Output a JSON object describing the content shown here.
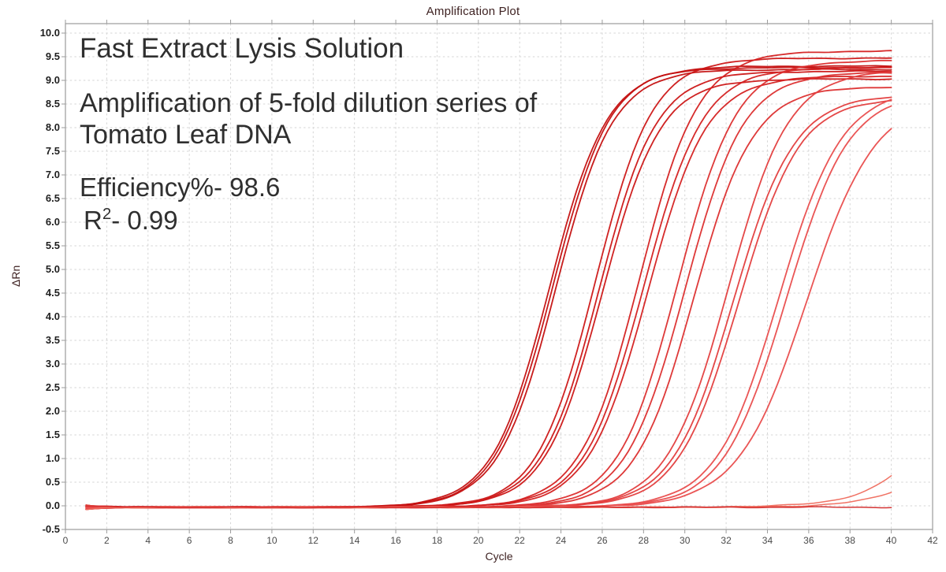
{
  "annotations": {
    "heading": "Fast Extract Lysis Solution",
    "subtitle": "Amplification of 5-fold dilution series of\nTomato Leaf DNA",
    "efficiency": "Efficiency%- 98.6",
    "r_base": "R",
    "r_sup": "2",
    "r_rest": "- 0.99"
  },
  "chart_data": {
    "type": "line",
    "title": "Amplification Plot",
    "xlabel": "Cycle",
    "ylabel": "ΔRn",
    "xlim": [
      0,
      42
    ],
    "ylim": [
      -0.5,
      10.0
    ],
    "x_ticks": [
      0,
      2,
      4,
      6,
      8,
      10,
      12,
      14,
      16,
      18,
      20,
      22,
      24,
      26,
      28,
      30,
      32,
      34,
      36,
      38,
      40,
      42
    ],
    "y_ticks": [
      -0.5,
      0.0,
      0.5,
      1.0,
      1.5,
      2.0,
      2.5,
      3.0,
      3.5,
      4.0,
      4.5,
      5.0,
      5.5,
      6.0,
      6.5,
      7.0,
      7.5,
      8.0,
      8.5,
      9.0,
      9.5,
      10.0
    ],
    "grid": "dashed",
    "legend": "none",
    "cycle_range": [
      1,
      40
    ],
    "baseline_dRn": -0.03,
    "efficiency_percent": 98.6,
    "r_squared": 0.99,
    "dilution_factor": 5,
    "model": "logistic: dRn(cycle) = baseline + plateau / (1 + exp(-k*(cycle - midpoint)))",
    "series": [
      {
        "name": "dilution-group-1",
        "color": "#c41010",
        "width": 1.8,
        "curves": [
          {
            "midpoint": 23.45,
            "k": 0.72,
            "plateau": 9.3
          },
          {
            "midpoint": 23.6,
            "k": 0.72,
            "plateau": 9.33
          },
          {
            "midpoint": 23.75,
            "k": 0.72,
            "plateau": 9.26
          }
        ]
      },
      {
        "name": "dilution-group-2",
        "color": "#cc1616",
        "width": 1.8,
        "curves": [
          {
            "midpoint": 25.65,
            "k": 0.72,
            "plateau": 9.5
          },
          {
            "midpoint": 25.85,
            "k": 0.72,
            "plateau": 9.22
          },
          {
            "midpoint": 26.0,
            "k": 0.72,
            "plateau": 9.06
          }
        ]
      },
      {
        "name": "dilution-group-3",
        "color": "#d42020",
        "width": 1.8,
        "curves": [
          {
            "midpoint": 27.8,
            "k": 0.7,
            "plateau": 9.65
          },
          {
            "midpoint": 28.0,
            "k": 0.7,
            "plateau": 9.3
          },
          {
            "midpoint": 28.2,
            "k": 0.7,
            "plateau": 9.12
          }
        ]
      },
      {
        "name": "dilution-group-4",
        "color": "#dc2e2e",
        "width": 1.8,
        "curves": [
          {
            "midpoint": 29.65,
            "k": 0.7,
            "plateau": 9.45
          },
          {
            "midpoint": 30.0,
            "k": 0.7,
            "plateau": 9.2
          },
          {
            "midpoint": 30.45,
            "k": 0.7,
            "plateau": 8.9
          }
        ]
      },
      {
        "name": "dilution-group-5",
        "color": "#e33d3d",
        "width": 1.8,
        "curves": [
          {
            "midpoint": 32.1,
            "k": 0.68,
            "plateau": 9.25
          },
          {
            "midpoint": 32.35,
            "k": 0.68,
            "plateau": 8.72
          },
          {
            "midpoint": 32.6,
            "k": 0.68,
            "plateau": 8.66
          }
        ]
      },
      {
        "name": "dilution-group-6",
        "color": "#e94c4c",
        "width": 1.8,
        "curves": [
          {
            "midpoint": 34.55,
            "k": 0.66,
            "plateau": 8.85
          },
          {
            "midpoint": 34.9,
            "k": 0.66,
            "plateau": 8.78
          },
          {
            "midpoint": 35.9,
            "k": 0.6,
            "plateau": 8.7
          }
        ]
      },
      {
        "name": "late-rise",
        "color": "#ef6a5c",
        "width": 1.5,
        "curves": [
          {
            "midpoint": 44.6,
            "k": 0.55,
            "plateau": 9.0
          },
          {
            "midpoint": 46.0,
            "k": 0.55,
            "plateau": 9.0
          }
        ]
      },
      {
        "name": "no-amplification",
        "color": "#d22a2a",
        "width": 1.5,
        "curves": [
          {
            "midpoint": 0,
            "k": 0,
            "plateau": 0
          }
        ]
      }
    ]
  }
}
